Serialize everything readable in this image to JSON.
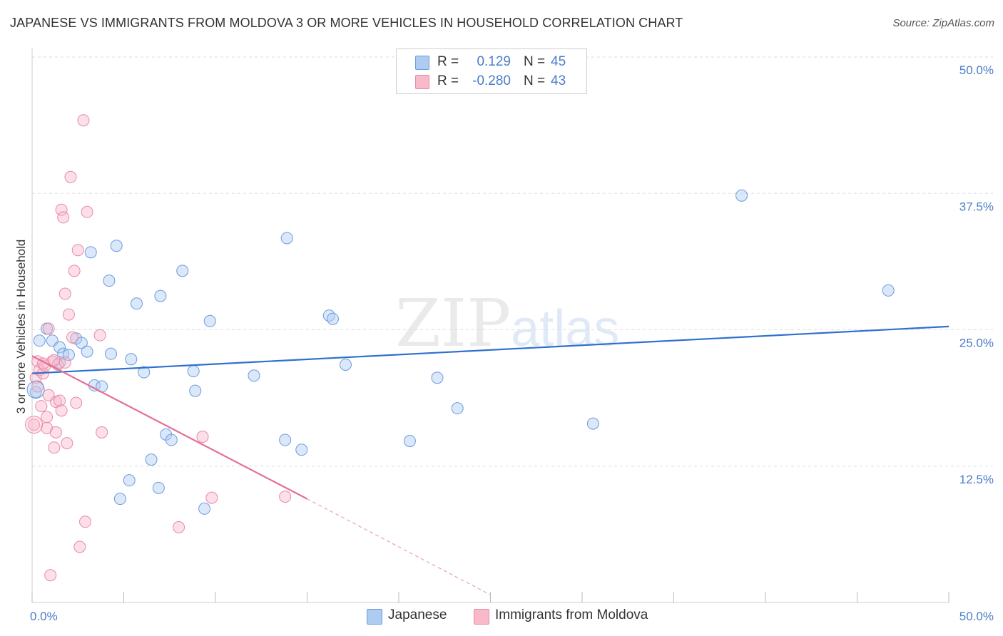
{
  "title": "JAPANESE VS IMMIGRANTS FROM MOLDOVA 3 OR MORE VEHICLES IN HOUSEHOLD CORRELATION CHART",
  "source": "Source: ZipAtlas.com",
  "watermark": {
    "zip": "ZIP",
    "atlas": "atlas"
  },
  "legend": {
    "rows": [
      {
        "r_label": "R =",
        "r_value": "0.129",
        "n_label": "N =",
        "n_value": "45",
        "color": "#aecbf2"
      },
      {
        "r_label": "R =",
        "r_value": "-0.280",
        "n_label": "N =",
        "n_value": "43",
        "color": "#f8b9cb"
      }
    ]
  },
  "bottom_legend": [
    {
      "label": "Japanese",
      "color": "#aecbf2"
    },
    {
      "label": "Immigrants from Moldova",
      "color": "#f8b9cb"
    }
  ],
  "chart_data": {
    "type": "scatter",
    "title": "JAPANESE VS IMMIGRANTS FROM MOLDOVA 3 OR MORE VEHICLES IN HOUSEHOLD CORRELATION CHART",
    "xlabel": "",
    "ylabel": "3 or more Vehicles in Household",
    "xlim": [
      0,
      50
    ],
    "ylim": [
      0,
      50
    ],
    "x_tick_labels": {
      "min": "0.0%",
      "max": "50.0%"
    },
    "y_ticks": [
      {
        "value": 50,
        "label": "50.0%"
      },
      {
        "value": 37.5,
        "label": "37.5%"
      },
      {
        "value": 25,
        "label": "25.0%"
      },
      {
        "value": 12.5,
        "label": "12.5%"
      }
    ],
    "grid": true,
    "series": [
      {
        "name": "Japanese",
        "color": "#6c9be0",
        "fill": "#aecbf2",
        "trend": {
          "x0": 0,
          "y0": 21.0,
          "x1": 50,
          "y1": 25.3,
          "color": "#2e6fcf"
        },
        "points": [
          [
            0.4,
            24.0
          ],
          [
            0.8,
            25.1
          ],
          [
            1.1,
            24.0
          ],
          [
            1.5,
            23.4
          ],
          [
            1.7,
            22.8
          ],
          [
            2.0,
            22.7
          ],
          [
            2.4,
            24.2
          ],
          [
            2.7,
            23.8
          ],
          [
            3.0,
            23.0
          ],
          [
            3.2,
            32.1
          ],
          [
            3.4,
            19.9
          ],
          [
            3.8,
            19.8
          ],
          [
            4.2,
            29.5
          ],
          [
            4.3,
            22.8
          ],
          [
            4.6,
            32.7
          ],
          [
            4.8,
            9.5
          ],
          [
            5.3,
            11.2
          ],
          [
            5.4,
            22.3
          ],
          [
            5.7,
            27.4
          ],
          [
            6.1,
            21.1
          ],
          [
            6.5,
            13.1
          ],
          [
            6.9,
            10.5
          ],
          [
            7.0,
            28.1
          ],
          [
            7.3,
            15.4
          ],
          [
            7.6,
            14.9
          ],
          [
            8.2,
            30.4
          ],
          [
            8.8,
            21.2
          ],
          [
            8.9,
            19.4
          ],
          [
            9.4,
            8.6
          ],
          [
            9.7,
            25.8
          ],
          [
            12.1,
            20.8
          ],
          [
            13.9,
            33.4
          ],
          [
            13.8,
            14.9
          ],
          [
            14.7,
            14.0
          ],
          [
            16.2,
            26.3
          ],
          [
            16.4,
            26.0
          ],
          [
            17.1,
            21.8
          ],
          [
            20.6,
            14.8
          ],
          [
            22.1,
            20.6
          ],
          [
            23.2,
            17.8
          ],
          [
            30.6,
            16.4
          ],
          [
            38.7,
            37.3
          ],
          [
            46.7,
            28.6
          ],
          [
            0.2,
            19.3
          ],
          [
            1.5,
            22.0
          ]
        ]
      },
      {
        "name": "Immigrants from Moldova",
        "color": "#e88aa6",
        "fill": "#f8b9cb",
        "trend": {
          "x0": 0,
          "y0": 22.6,
          "x1": 15.0,
          "y1": 9.5,
          "color": "#e46f97"
        },
        "trend_dashed": {
          "x0": 15.0,
          "y0": 9.5,
          "x1": 25.0,
          "y1": 0.7,
          "color": "#e8a0b8"
        },
        "points": [
          [
            0.1,
            16.3
          ],
          [
            0.2,
            20.6
          ],
          [
            0.3,
            22.1
          ],
          [
            0.4,
            21.3
          ],
          [
            0.5,
            18.0
          ],
          [
            0.6,
            21.0
          ],
          [
            0.7,
            21.7
          ],
          [
            0.8,
            16.0
          ],
          [
            0.8,
            17.0
          ],
          [
            0.9,
            25.1
          ],
          [
            1.0,
            2.5
          ],
          [
            1.1,
            22.1
          ],
          [
            1.2,
            14.2
          ],
          [
            1.3,
            15.6
          ],
          [
            1.3,
            18.4
          ],
          [
            1.4,
            21.8
          ],
          [
            1.5,
            18.5
          ],
          [
            1.6,
            17.6
          ],
          [
            1.6,
            36.0
          ],
          [
            1.7,
            35.3
          ],
          [
            1.8,
            28.3
          ],
          [
            1.8,
            22.0
          ],
          [
            1.9,
            14.6
          ],
          [
            2.0,
            26.4
          ],
          [
            2.1,
            39.0
          ],
          [
            2.2,
            24.3
          ],
          [
            2.3,
            30.4
          ],
          [
            2.4,
            18.3
          ],
          [
            2.5,
            32.3
          ],
          [
            2.6,
            5.1
          ],
          [
            2.8,
            44.2
          ],
          [
            2.9,
            7.4
          ],
          [
            3.0,
            35.8
          ],
          [
            3.7,
            24.5
          ],
          [
            3.8,
            15.6
          ],
          [
            8.0,
            6.9
          ],
          [
            9.3,
            15.2
          ],
          [
            9.8,
            9.6
          ],
          [
            13.8,
            9.7
          ],
          [
            0.3,
            19.8
          ],
          [
            0.6,
            21.9
          ],
          [
            1.2,
            22.2
          ],
          [
            0.9,
            19.0
          ]
        ]
      }
    ]
  }
}
